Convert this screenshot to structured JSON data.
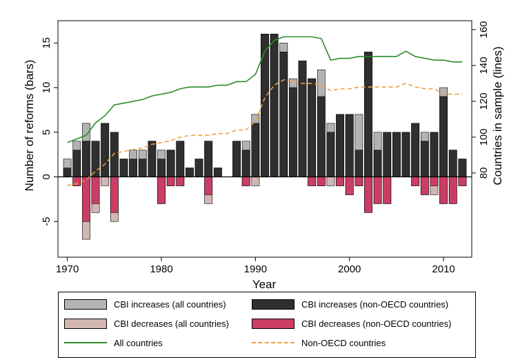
{
  "chart_data": {
    "type": "bar",
    "xlabel": "Year",
    "ylabel": "Number of reforms (bars)",
    "y2label": "Countries in sample (lines)",
    "xlim": [
      1969,
      2013
    ],
    "ylim": [
      -9,
      17.5
    ],
    "y2lim": [
      33,
      165
    ],
    "xticks": [
      1970,
      1980,
      1990,
      2000,
      2010
    ],
    "yticks": [
      -5,
      0,
      5,
      10,
      15
    ],
    "y2ticks": [
      80,
      100,
      120,
      140,
      160
    ],
    "grid": false,
    "legend_position": "bottom",
    "colors": {
      "incr_all": "#b3b3b3",
      "incr_non": "#2f2f2f",
      "decr_all": "#d2b6b0",
      "decr_non": "#cc3d66",
      "all_line": "#2a8c2a",
      "non_line": "#f0a040"
    },
    "years": [
      1970,
      1971,
      1972,
      1973,
      1974,
      1975,
      1976,
      1977,
      1978,
      1979,
      1980,
      1981,
      1982,
      1983,
      1984,
      1985,
      1986,
      1987,
      1988,
      1989,
      1990,
      1991,
      1992,
      1993,
      1994,
      1995,
      1996,
      1997,
      1998,
      1999,
      2000,
      2001,
      2002,
      2003,
      2004,
      2005,
      2006,
      2007,
      2008,
      2009,
      2010,
      2011,
      2012
    ],
    "series": [
      {
        "key": "incr_all",
        "name": "CBI increases (all countries)",
        "values": [
          2,
          4,
          6,
          4,
          6,
          5,
          2,
          3,
          3,
          4,
          3,
          3,
          4,
          1,
          2,
          4,
          1,
          0,
          4,
          4,
          7,
          16,
          16,
          15,
          11,
          13,
          11,
          12,
          6,
          7,
          7,
          7,
          14,
          5,
          5,
          5,
          5,
          6,
          5,
          5,
          10,
          3,
          2
        ]
      },
      {
        "key": "incr_non",
        "name": "CBI increases (non-OECD countries)",
        "values": [
          1,
          3,
          4,
          4,
          6,
          5,
          2,
          2,
          2,
          4,
          2,
          3,
          4,
          1,
          2,
          4,
          1,
          0,
          4,
          3,
          6,
          16,
          16,
          14,
          10,
          13,
          11,
          9,
          5,
          7,
          7,
          3,
          14,
          3,
          5,
          5,
          5,
          6,
          4,
          5,
          9,
          3,
          2
        ]
      },
      {
        "key": "decr_all",
        "name": "CBI decreases (all countries)",
        "values": [
          0,
          -1,
          -7,
          -4,
          -1,
          -5,
          0,
          0,
          0,
          0,
          -3,
          -1,
          -1,
          0,
          0,
          -3,
          0,
          0,
          0,
          -1,
          -1,
          0,
          0,
          0,
          0,
          0,
          -1,
          -1,
          -1,
          -1,
          -2,
          -1,
          -4,
          -3,
          -3,
          0,
          0,
          -1,
          -2,
          -2,
          -3,
          -3,
          -1
        ]
      },
      {
        "key": "decr_non",
        "name": "CBI decreases (non-OECD countries)",
        "values": [
          0,
          -1,
          -5,
          -3,
          0,
          -4,
          0,
          0,
          0,
          0,
          -3,
          -1,
          -1,
          0,
          0,
          -2,
          0,
          0,
          0,
          -1,
          0,
          0,
          0,
          0,
          0,
          0,
          -1,
          -1,
          0,
          -1,
          -2,
          -1,
          -4,
          -3,
          -3,
          0,
          0,
          -1,
          -2,
          -1,
          -3,
          -3,
          -1
        ]
      },
      {
        "key": "all_line",
        "name": "All countries",
        "axis": "right",
        "values": [
          97,
          99,
          101,
          108,
          112,
          118,
          119,
          120,
          121,
          123,
          124,
          125,
          127,
          128,
          128,
          128,
          129,
          129,
          131,
          131,
          135,
          148,
          154,
          156,
          156,
          156,
          156,
          155,
          143,
          144,
          144,
          145,
          145,
          145,
          145,
          145,
          148,
          145,
          144,
          143,
          143,
          142,
          142
        ]
      },
      {
        "key": "non_line",
        "name": "Non-OECD countries",
        "axis": "right",
        "values": [
          73,
          74,
          76,
          81,
          85,
          91,
          92,
          93,
          94,
          96,
          97,
          98,
          100,
          101,
          101,
          101,
          102,
          102,
          104,
          104,
          109,
          122,
          129,
          132,
          131,
          130,
          130,
          129,
          126,
          127,
          127,
          128,
          128,
          128,
          128,
          128,
          130,
          128,
          127,
          127,
          124,
          124,
          124
        ]
      }
    ]
  },
  "legend": {
    "items": [
      {
        "label": "CBI increases (all countries)"
      },
      {
        "label": "CBI increases (non-OECD countries)"
      },
      {
        "label": "CBI decreases (all countries)"
      },
      {
        "label": "CBI decreases (non-OECD countries)"
      },
      {
        "label": "All countries"
      },
      {
        "label": "Non-OECD countries"
      }
    ]
  }
}
